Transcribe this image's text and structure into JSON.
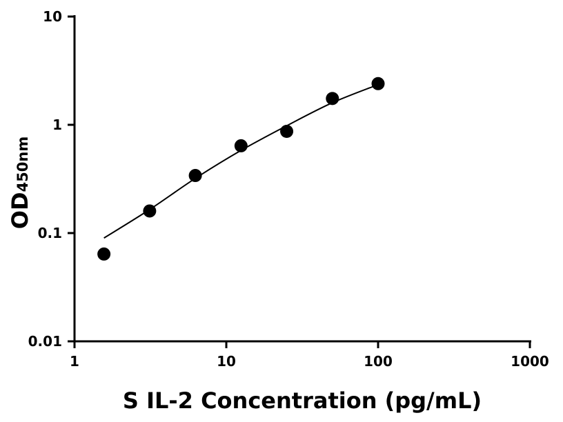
{
  "chart_data": {
    "type": "scatter",
    "title": "",
    "xlabel": "S IL-2 Concentration (pg/mL)",
    "ylabel": "OD",
    "ylabel_subscript": "450nm",
    "xscale": "log",
    "yscale": "log",
    "xlim": [
      1,
      1000
    ],
    "ylim": [
      0.01,
      10
    ],
    "x_ticks": [
      1,
      10,
      100,
      1000
    ],
    "x_tick_labels": [
      "1",
      "10",
      "100",
      "1000"
    ],
    "y_ticks": [
      0.01,
      0.1,
      1,
      10
    ],
    "y_tick_labels": [
      "0.01",
      "0.1",
      "1",
      "10"
    ],
    "grid": false,
    "legend": "none",
    "series": [
      {
        "marker": "filled-circle",
        "color": "#000000",
        "x": [
          1.5625,
          3.125,
          6.25,
          12.5,
          25,
          50,
          100
        ],
        "y": [
          0.064,
          0.16,
          0.34,
          0.64,
          0.87,
          1.75,
          2.4
        ]
      }
    ],
    "fit_curve": {
      "color": "#000000",
      "x": [
        1.5625,
        3.125,
        6.25,
        12.5,
        25,
        50,
        100
      ],
      "y": [
        0.09,
        0.165,
        0.32,
        0.58,
        0.98,
        1.6,
        2.35
      ]
    }
  }
}
